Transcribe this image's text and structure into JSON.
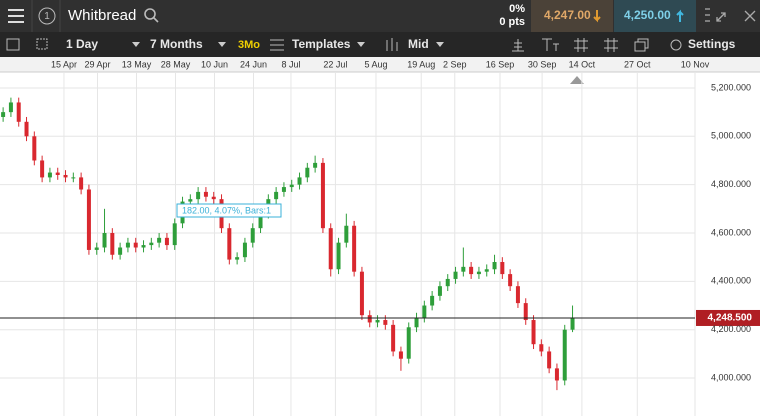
{
  "header": {
    "instrument": "Whitbread",
    "change_pct": "0%",
    "change_pts": "0 pts",
    "sell": "4,247.00",
    "buy": "4,250.00"
  },
  "toolbar": {
    "interval": "1 Day",
    "range": "7 Months",
    "preset": "3Mo",
    "templates": "Templates",
    "price_type": "Mid",
    "settings": "Settings"
  },
  "chart_data": {
    "type": "candlestick",
    "open": [
      5080,
      5100,
      5140,
      5060,
      5000,
      4900,
      4830,
      4850,
      4840,
      4830,
      4830,
      4780,
      4530,
      4540,
      4600,
      4510,
      4540,
      4560,
      4540,
      4550,
      4560,
      4580,
      4550,
      4640,
      4730,
      4740,
      4770,
      4750,
      4740,
      4620,
      4490,
      4500,
      4560,
      4620,
      4680,
      4740,
      4770,
      4790,
      4800,
      4830,
      4870,
      4890,
      4620,
      4450,
      4560,
      4630,
      4440,
      4260,
      4230,
      4240,
      4220,
      4110,
      4080,
      4210,
      4250,
      4300,
      4340,
      4380,
      4410,
      4440,
      4460,
      4430,
      4440,
      4450,
      4480,
      4430,
      4380,
      4310,
      4240,
      4140,
      4110,
      4040,
      3990,
      4200
    ],
    "high": [
      5120,
      5160,
      5160,
      5080,
      5020,
      4920,
      4870,
      4870,
      4860,
      4850,
      4850,
      4800,
      4560,
      4700,
      4620,
      4560,
      4580,
      4580,
      4570,
      4580,
      4600,
      4600,
      4660,
      4750,
      4760,
      4790,
      4790,
      4770,
      4760,
      4640,
      4520,
      4580,
      4640,
      4700,
      4760,
      4790,
      4810,
      4820,
      4850,
      4890,
      4920,
      4910,
      4640,
      4580,
      4680,
      4650,
      4460,
      4280,
      4260,
      4260,
      4240,
      4130,
      4230,
      4270,
      4320,
      4360,
      4400,
      4430,
      4460,
      4540,
      4480,
      4460,
      4470,
      4510,
      4500,
      4450,
      4400,
      4330,
      4260,
      4160,
      4130,
      4060,
      4220,
      4300
    ],
    "low": [
      5060,
      5080,
      5040,
      4980,
      4880,
      4810,
      4810,
      4820,
      4810,
      4810,
      4760,
      4510,
      4510,
      4520,
      4490,
      4490,
      4520,
      4520,
      4520,
      4530,
      4540,
      4530,
      4530,
      4620,
      4710,
      4720,
      4730,
      4720,
      4600,
      4470,
      4470,
      4480,
      4540,
      4600,
      4660,
      4720,
      4750,
      4770,
      4780,
      4810,
      4850,
      4600,
      4420,
      4430,
      4540,
      4420,
      4240,
      4210,
      4210,
      4200,
      4090,
      4030,
      4060,
      4190,
      4230,
      4280,
      4320,
      4360,
      4390,
      4420,
      4410,
      4410,
      4420,
      4430,
      4410,
      4360,
      4290,
      4220,
      4120,
      4090,
      4020,
      3950,
      3970,
      4190
    ],
    "close": [
      5100,
      5140,
      5060,
      5000,
      4900,
      4830,
      4850,
      4840,
      4830,
      4830,
      4780,
      4530,
      4540,
      4600,
      4510,
      4540,
      4560,
      4540,
      4550,
      4560,
      4580,
      4550,
      4640,
      4730,
      4740,
      4770,
      4750,
      4740,
      4620,
      4490,
      4500,
      4560,
      4620,
      4680,
      4740,
      4770,
      4790,
      4800,
      4830,
      4870,
      4890,
      4620,
      4450,
      4560,
      4630,
      4440,
      4260,
      4230,
      4240,
      4220,
      4110,
      4080,
      4210,
      4250,
      4300,
      4340,
      4380,
      4410,
      4440,
      4460,
      4430,
      4440,
      4450,
      4480,
      4430,
      4380,
      4310,
      4240,
      4140,
      4110,
      4040,
      3990,
      4200,
      4248.5
    ],
    "up_color": "#2e9e3a",
    "down_color": "#d9282f",
    "xlim": [
      -0.4,
      88.7
    ],
    "xticks": [
      {
        "value": 7.8,
        "label": "15 Apr"
      },
      {
        "value": 12.1,
        "label": "29 Apr"
      },
      {
        "value": 17.1,
        "label": "13 May"
      },
      {
        "value": 22.1,
        "label": "28 May"
      },
      {
        "value": 27.1,
        "label": "10 Jun"
      },
      {
        "value": 32.1,
        "label": "24 Jun"
      },
      {
        "value": 36.9,
        "label": "8 Jul"
      },
      {
        "value": 42.6,
        "label": "22 Jul"
      },
      {
        "value": 47.8,
        "label": "5 Aug"
      },
      {
        "value": 53.6,
        "label": "19 Aug"
      },
      {
        "value": 57.9,
        "label": "2 Sep"
      },
      {
        "value": 63.7,
        "label": "16 Sep"
      },
      {
        "value": 69.1,
        "label": "30 Sep"
      },
      {
        "value": 74.2,
        "label": "14 Oct"
      },
      {
        "value": 81.3,
        "label": "27 Oct"
      },
      {
        "value": 88.7,
        "label": "10 Nov"
      }
    ],
    "ylim": [
      3843,
      5266
    ],
    "yticks": [
      {
        "value": 4000,
        "label": "4,000.000"
      },
      {
        "value": 4200,
        "label": "4,200.000"
      },
      {
        "value": 4400,
        "label": "4,400.000"
      },
      {
        "value": 4600,
        "label": "4,600.000"
      },
      {
        "value": 4800,
        "label": "4,800.000"
      },
      {
        "value": 5000,
        "label": "5,000.000"
      },
      {
        "value": 5200,
        "label": "5,200.000"
      }
    ],
    "grid": true,
    "annotation": "182.00, 4.07%, Bars:1",
    "last_price": 4248.5,
    "last_price_label": "4,248.500"
  }
}
